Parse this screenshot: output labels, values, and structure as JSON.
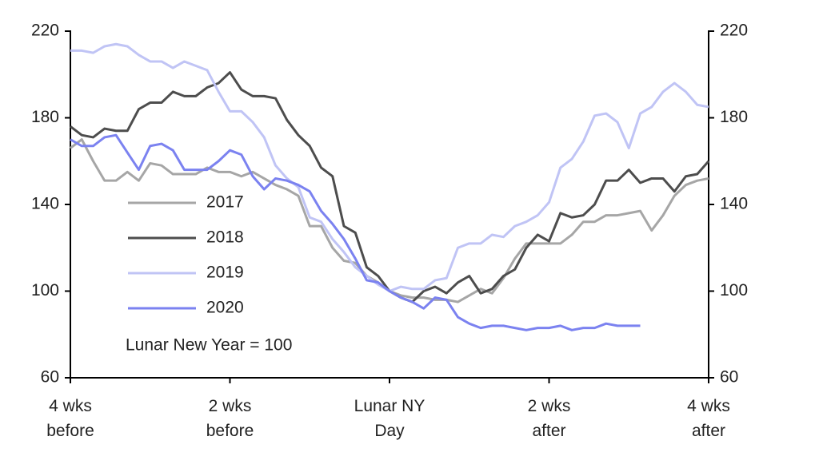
{
  "chart_data": {
    "type": "line",
    "annotation": "Lunar New Year = 100",
    "x": [
      -28,
      -27,
      -26,
      -25,
      -24,
      -23,
      -22,
      -21,
      -20,
      -19,
      -18,
      -17,
      -16,
      -15,
      -14,
      -13,
      -12,
      -11,
      -10,
      -9,
      -8,
      -7,
      -6,
      -5,
      -4,
      -3,
      -2,
      -1,
      0,
      1,
      2,
      3,
      4,
      5,
      6,
      7,
      8,
      9,
      10,
      11,
      12,
      13,
      14,
      15,
      16,
      17,
      18,
      19,
      20,
      21,
      22,
      23,
      24,
      25,
      26,
      27,
      28
    ],
    "series": [
      {
        "name": "2017",
        "color": "#a6a6a6",
        "values": [
          166,
          170,
          160,
          151,
          151,
          155,
          151,
          159,
          158,
          154,
          154,
          154,
          157,
          155,
          155,
          153,
          155,
          152,
          149,
          147,
          144,
          130,
          130,
          120,
          114,
          113,
          107,
          104,
          100,
          98,
          97,
          97,
          96,
          96,
          95,
          98,
          101,
          99,
          106,
          115,
          122,
          122,
          122,
          122,
          126,
          132,
          132,
          135,
          135,
          136,
          137,
          128,
          135,
          144,
          149,
          151,
          152
        ]
      },
      {
        "name": "2018",
        "color": "#4d4d4d",
        "values": [
          176,
          172,
          171,
          175,
          174,
          174,
          184,
          187,
          187,
          192,
          190,
          190,
          194,
          196,
          201,
          193,
          190,
          190,
          189,
          179,
          172,
          167,
          157,
          153,
          130,
          127,
          111,
          107,
          100,
          97,
          95,
          100,
          102,
          99,
          104,
          107,
          99,
          101,
          107,
          110,
          120,
          126,
          123,
          136,
          134,
          135,
          140,
          151,
          151,
          156,
          150,
          152,
          152,
          146,
          153,
          154,
          160
        ]
      },
      {
        "name": "2019",
        "color": "#c0c4f5",
        "values": [
          211,
          211,
          210,
          213,
          214,
          213,
          209,
          206,
          206,
          203,
          206,
          204,
          202,
          192,
          183,
          183,
          178,
          171,
          158,
          152,
          148,
          134,
          132,
          124,
          118,
          111,
          107,
          103,
          100,
          102,
          101,
          101,
          105,
          106,
          120,
          122,
          122,
          126,
          125,
          130,
          132,
          135,
          141,
          157,
          161,
          169,
          181,
          182,
          178,
          166,
          182,
          185,
          192,
          196,
          192,
          186,
          185
        ]
      },
      {
        "name": "2020",
        "color": "#7b82f0",
        "values": [
          170,
          167,
          167,
          171,
          172,
          164,
          156,
          167,
          168,
          165,
          156,
          156,
          156,
          160,
          165,
          163,
          153,
          147,
          152,
          151,
          149,
          146,
          137,
          131,
          124,
          115,
          105,
          104,
          100,
          97,
          95,
          92,
          97,
          96,
          88,
          85,
          83,
          84,
          84,
          83,
          82,
          83,
          83,
          84,
          82,
          83,
          83,
          85,
          84,
          84,
          84,
          null,
          null,
          null,
          null,
          null,
          null
        ]
      }
    ],
    "xlim": [
      -28,
      28
    ],
    "xticks": [
      {
        "value": -28,
        "label": "4 wks before"
      },
      {
        "value": -14,
        "label": "2 wks before"
      },
      {
        "value": 0,
        "label": "Lunar NY Day"
      },
      {
        "value": 14,
        "label": "2 wks after"
      },
      {
        "value": 28,
        "label": "4 wks after"
      }
    ],
    "ylim": [
      60,
      220
    ],
    "yticks": [
      60,
      100,
      140,
      180,
      220
    ],
    "y2lim": [
      60,
      220
    ],
    "y2ticks": [
      60,
      100,
      140,
      180,
      220
    ],
    "legend": "left",
    "grid": false
  }
}
